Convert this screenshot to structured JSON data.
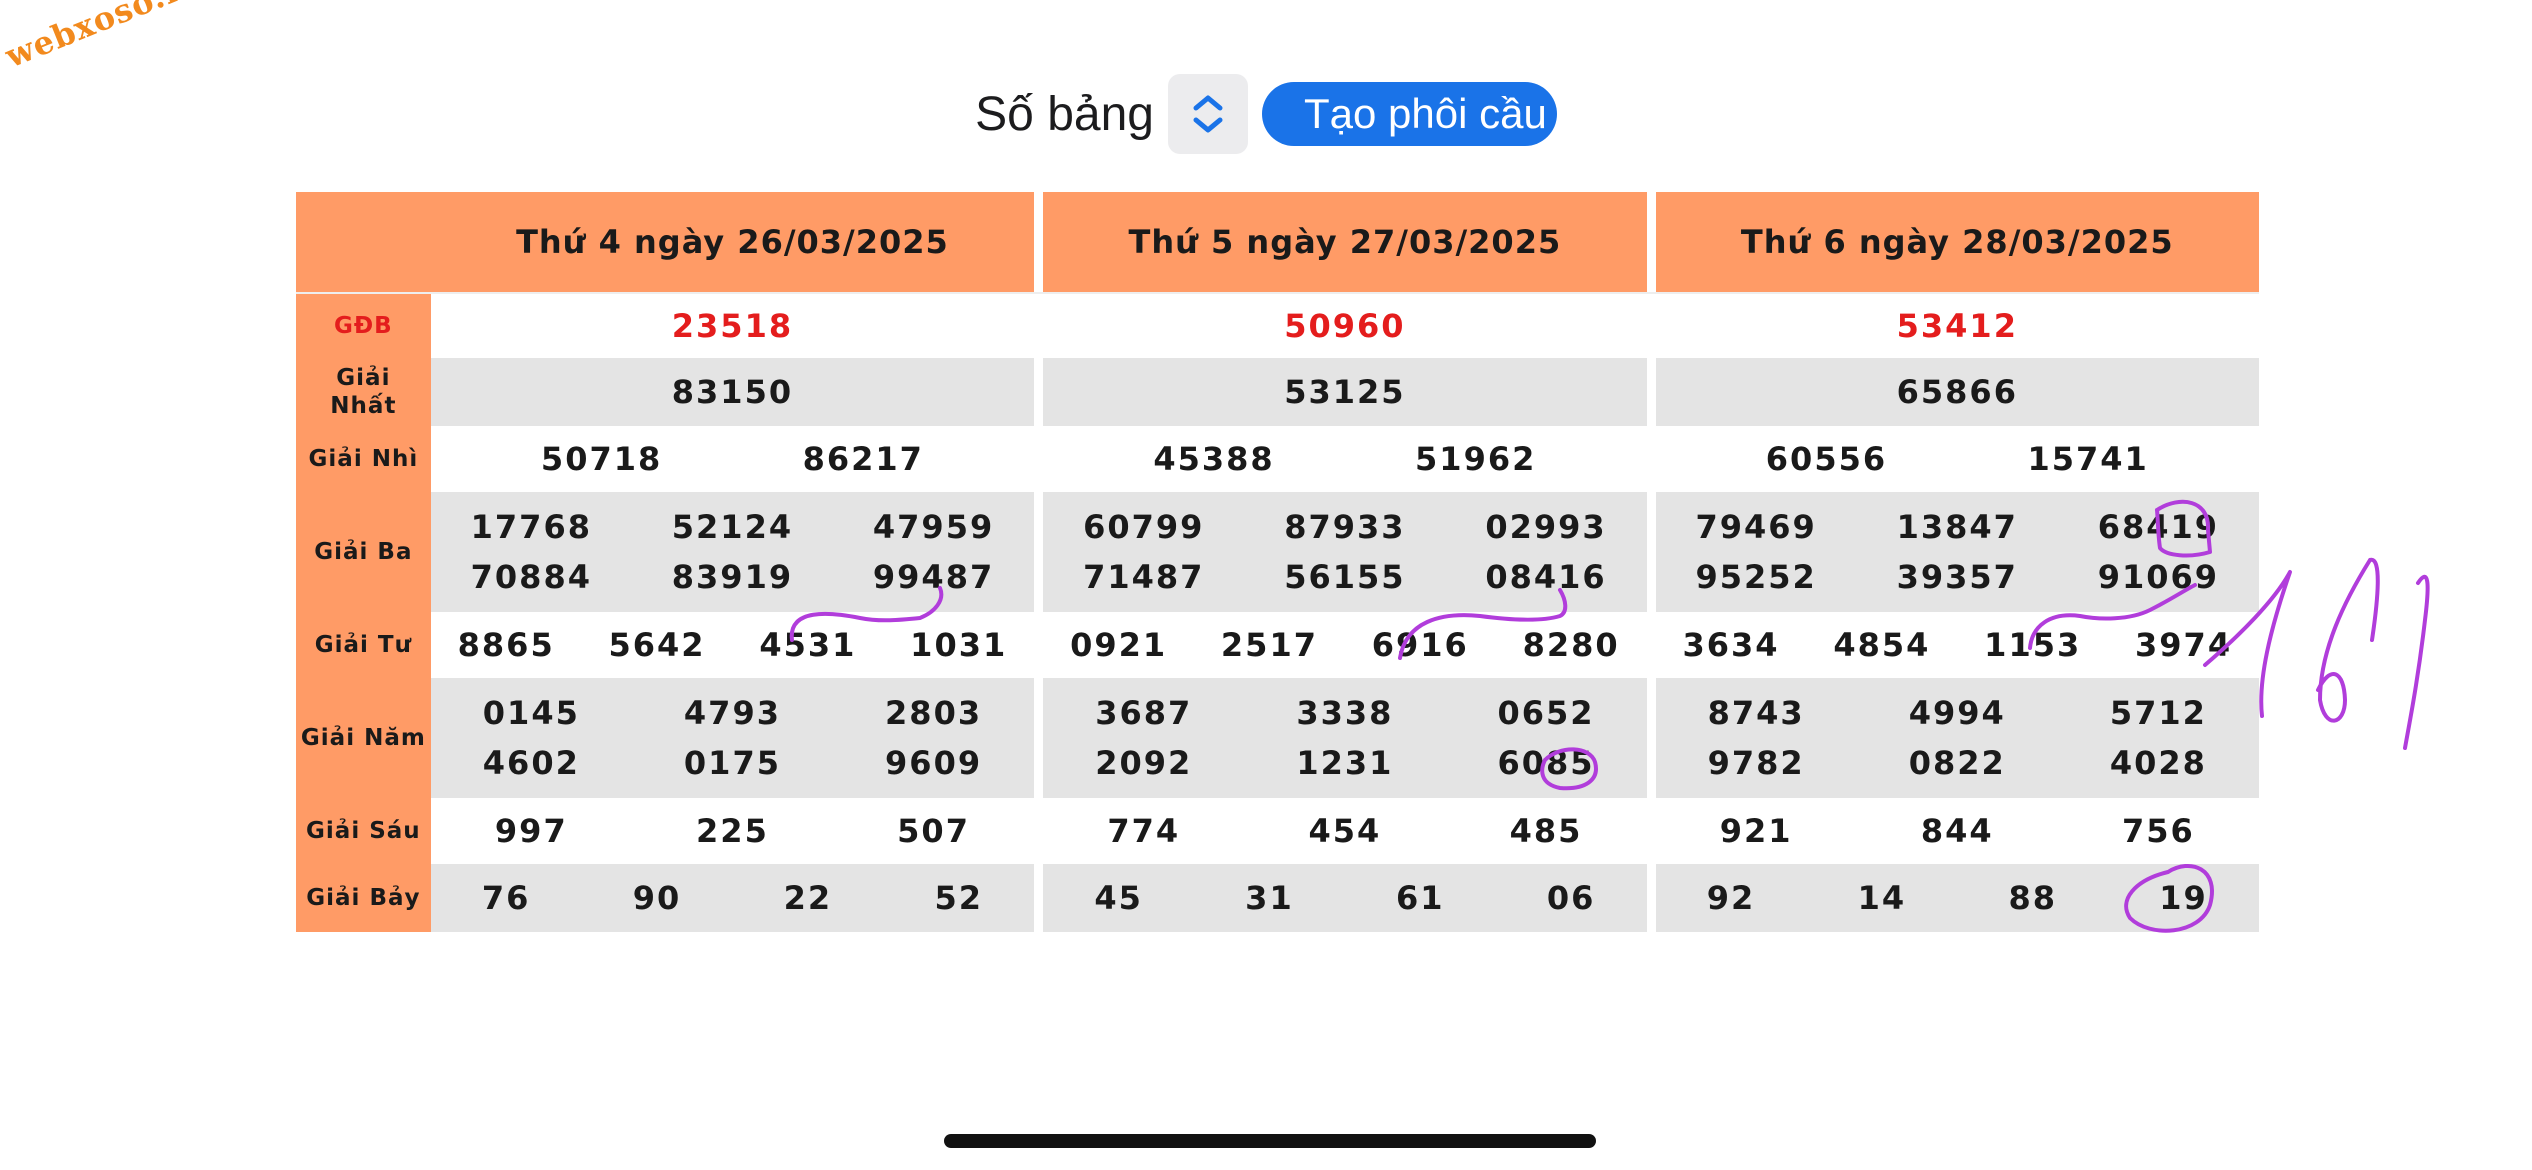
{
  "watermark": "webxoso.net",
  "toolbar": {
    "label": "Số bảng",
    "stepper_icon": "chevron-up-down-icon",
    "button": "Tạo phôi cầu"
  },
  "colors": {
    "header_bg": "#ff9b66",
    "special_prize": "#e41d1d",
    "button_bg": "#1a73e8",
    "annotation_ink": "#b13ddb"
  },
  "table": {
    "days": [
      "Thứ 4 ngày 26/03/2025",
      "Thứ 5 ngày 27/03/2025",
      "Thứ 6 ngày 28/03/2025"
    ],
    "row_labels": {
      "gdb": "GĐB",
      "nhat_line1": "Giải",
      "nhat_line2": "Nhất",
      "nhi": "Giải Nhì",
      "ba": "Giải Ba",
      "tu": "Giải Tư",
      "nam": "Giải Năm",
      "sau": "Giải Sáu",
      "bay": "Giải Bảy"
    },
    "results": [
      {
        "gdb": "23518",
        "nhat": "83150",
        "nhi": [
          "50718",
          "86217"
        ],
        "ba": [
          [
            "17768",
            "52124",
            "47959"
          ],
          [
            "70884",
            "83919",
            "99487"
          ]
        ],
        "tu": [
          "8865",
          "5642",
          "4531",
          "1031"
        ],
        "nam": [
          [
            "0145",
            "4793",
            "2803"
          ],
          [
            "4602",
            "0175",
            "9609"
          ]
        ],
        "sau": [
          "997",
          "225",
          "507"
        ],
        "bay": [
          "76",
          "90",
          "22",
          "52"
        ]
      },
      {
        "gdb": "50960",
        "nhat": "53125",
        "nhi": [
          "45388",
          "51962"
        ],
        "ba": [
          [
            "60799",
            "87933",
            "02993"
          ],
          [
            "71487",
            "56155",
            "08416"
          ]
        ],
        "tu": [
          "0921",
          "2517",
          "6916",
          "8280"
        ],
        "nam": [
          [
            "3687",
            "3338",
            "0652"
          ],
          [
            "2092",
            "1231",
            "6085"
          ]
        ],
        "sau": [
          "774",
          "454",
          "485"
        ],
        "bay": [
          "45",
          "31",
          "61",
          "06"
        ]
      },
      {
        "gdb": "53412",
        "nhat": "65866",
        "nhi": [
          "60556",
          "15741"
        ],
        "ba": [
          [
            "79469",
            "13847",
            "68419"
          ],
          [
            "95252",
            "39357",
            "91069"
          ]
        ],
        "tu": [
          "3634",
          "4854",
          "1153",
          "3974"
        ],
        "nam": [
          [
            "8743",
            "4994",
            "5712"
          ],
          [
            "9782",
            "0822",
            "4028"
          ]
        ],
        "sau": [
          "921",
          "844",
          "756"
        ],
        "bay": [
          "92",
          "14",
          "88",
          "19"
        ]
      }
    ]
  },
  "handwriting": "161"
}
